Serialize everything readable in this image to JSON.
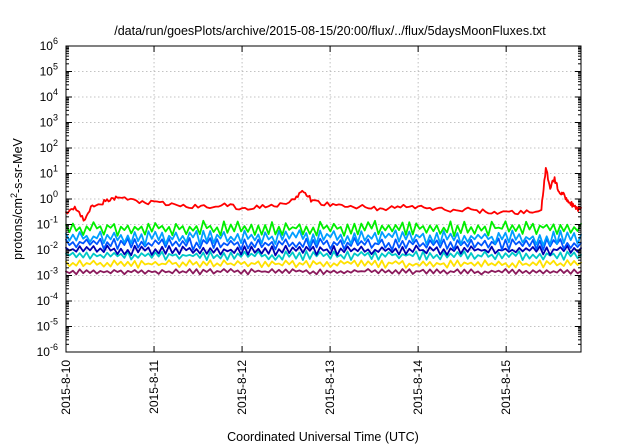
{
  "chart_data": {
    "type": "line",
    "title": "/data/run/goesPlots/archive/2015-08-15/20:00/flux/../flux/5daysMoonFluxes.txt",
    "xlabel": "Coordinated Universal Time (UTC)",
    "ylabel": "protons/cm2-s-sr-MeV",
    "ylabel_parts": {
      "pre": "protons/cm",
      "sup": "2",
      "post": "-s-sr-MeV"
    },
    "yscale": "log",
    "ylim": [
      1e-06,
      1000000.0
    ],
    "xlim": [
      0,
      5.85
    ],
    "x_ticks": [
      {
        "label": "2015-8-10",
        "x": 0
      },
      {
        "label": "2015-8-11",
        "x": 1
      },
      {
        "label": "2015-8-12",
        "x": 2
      },
      {
        "label": "2015-8-13",
        "x": 3
      },
      {
        "label": "2015-8-14",
        "x": 4
      },
      {
        "label": "2015-8-15",
        "x": 5
      }
    ],
    "y_ticks": [
      {
        "base": "10",
        "exp": "-6",
        "value": -6
      },
      {
        "base": "10",
        "exp": "-5",
        "value": -5
      },
      {
        "base": "10",
        "exp": "-4",
        "value": -4
      },
      {
        "base": "10",
        "exp": "-3",
        "value": -3
      },
      {
        "base": "10",
        "exp": "-2",
        "value": -2
      },
      {
        "base": "10",
        "exp": "-1",
        "value": -1
      },
      {
        "base": "10",
        "exp": "0",
        "value": 0
      },
      {
        "base": "10",
        "exp": "1",
        "value": 1
      },
      {
        "base": "10",
        "exp": "2",
        "value": 2
      },
      {
        "base": "10",
        "exp": "3",
        "value": 3
      },
      {
        "base": "10",
        "exp": "4",
        "value": 4
      },
      {
        "base": "10",
        "exp": "5",
        "value": 5
      },
      {
        "base": "10",
        "exp": "6",
        "value": 6
      }
    ],
    "grid": true,
    "series": [
      {
        "color": "#ff0000",
        "x": [
          0,
          0.1,
          0.2,
          0.3,
          0.4,
          0.5,
          0.6,
          0.8,
          1.0,
          1.2,
          1.4,
          1.6,
          1.8,
          2.0,
          2.2,
          2.4,
          2.6,
          2.7,
          2.8,
          3.0,
          3.2,
          3.4,
          3.6,
          3.8,
          4.0,
          4.2,
          4.4,
          4.6,
          4.8,
          5.0,
          5.2,
          5.4,
          5.45,
          5.5,
          5.55,
          5.6,
          5.65,
          5.7,
          5.75,
          5.8,
          5.85
        ],
        "y": [
          0.3,
          0.5,
          0.15,
          0.6,
          0.7,
          0.9,
          1.2,
          0.8,
          0.7,
          0.6,
          0.5,
          0.5,
          0.6,
          0.4,
          0.5,
          0.6,
          1.0,
          2.0,
          0.8,
          0.6,
          0.5,
          0.5,
          0.4,
          0.5,
          0.5,
          0.4,
          0.35,
          0.4,
          0.3,
          0.3,
          0.3,
          0.4,
          15,
          3,
          6,
          2,
          1.5,
          0.9,
          0.6,
          0.4,
          0.45
        ]
      },
      {
        "color": "#00ee00",
        "band_min": 0.035,
        "band_max": 0.14
      },
      {
        "color": "#009eff",
        "band_min": 0.015,
        "band_max": 0.06
      },
      {
        "color": "#0055ff",
        "band_min": 0.01,
        "band_max": 0.03
      },
      {
        "color": "#0000b0",
        "band_min": 0.006,
        "band_max": 0.015
      },
      {
        "color": "#00c8c8",
        "band_min": 0.004,
        "band_max": 0.009
      },
      {
        "color": "#ffe100",
        "band_min": 0.002,
        "band_max": 0.004
      },
      {
        "color": "#8b1a5c",
        "band_min": 0.0011,
        "band_max": 0.0018
      }
    ]
  }
}
